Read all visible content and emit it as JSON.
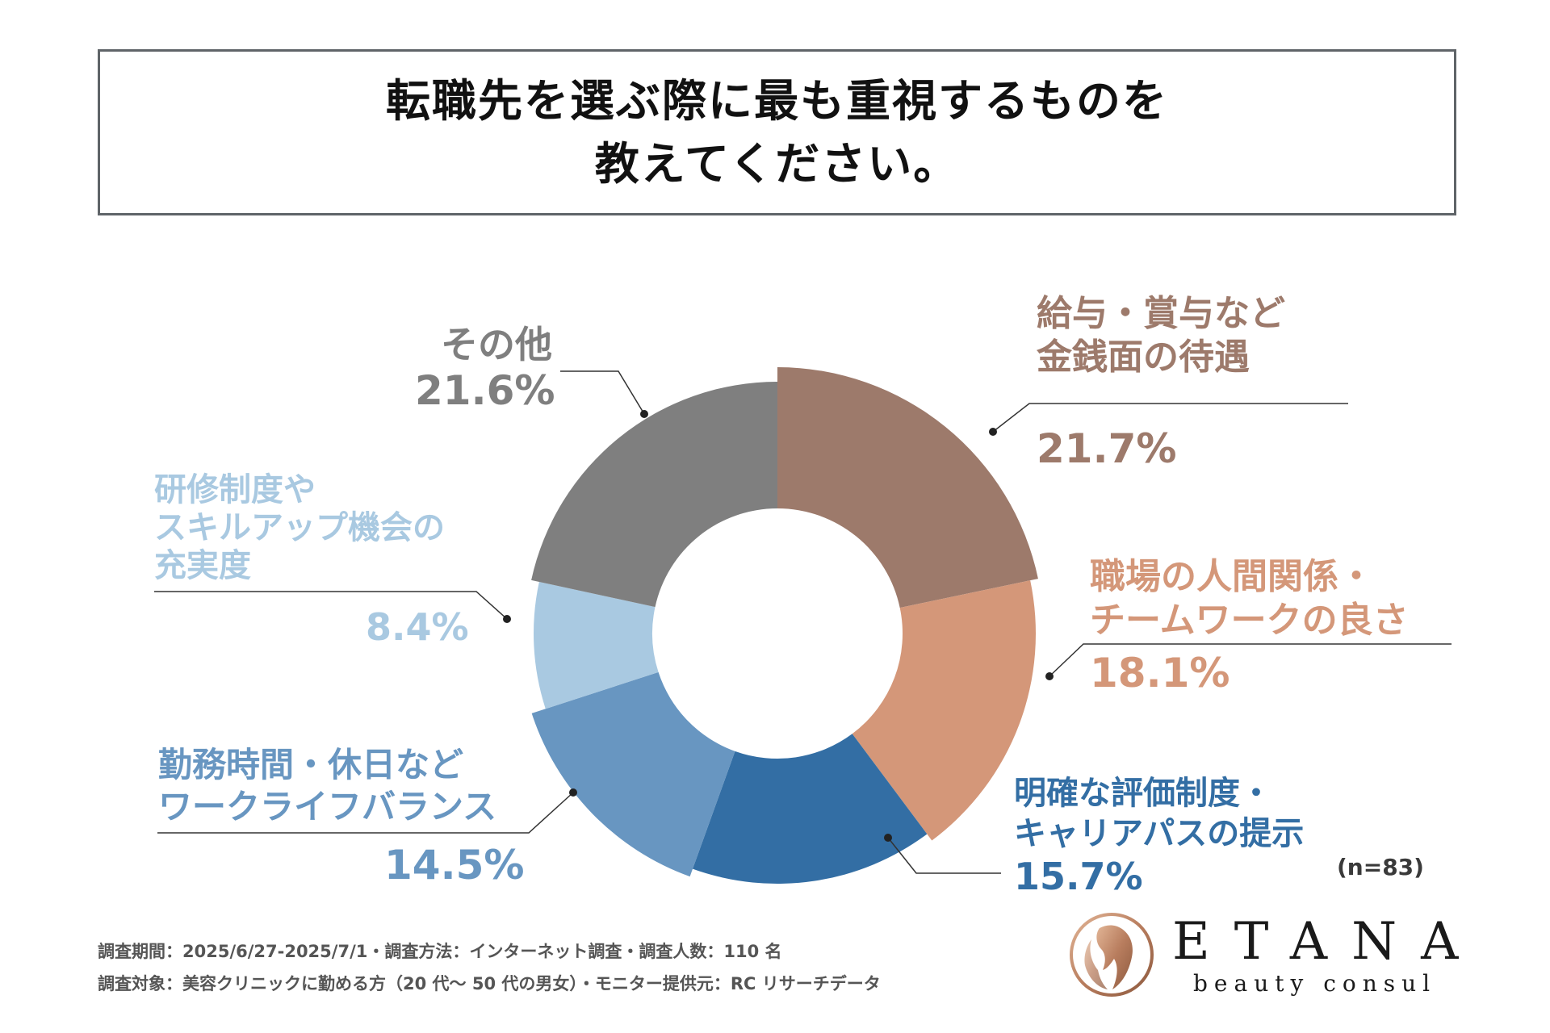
{
  "title": {
    "line1": "転職先を選ぶ際に最も重視するものを",
    "line2": "教えてください。"
  },
  "chart_data": {
    "type": "pie",
    "title": "転職先を選ぶ際に最も重視するものを教えてください。",
    "slices": [
      {
        "name_line1": "給与・賞与など",
        "name_line2": "金銭面の待遇",
        "name_line3": "",
        "value": 21.7,
        "label": "21.7%",
        "color": "#9d7a6b"
      },
      {
        "name_line1": "職場の人間関係・",
        "name_line2": "チームワークの良さ",
        "name_line3": "",
        "value": 18.1,
        "label": "18.1%",
        "color": "#d49779"
      },
      {
        "name_line1": "明確な評価制度・",
        "name_line2": "キャリアパスの提示",
        "name_line3": "",
        "value": 15.7,
        "label": "15.7%",
        "color": "#336ea4"
      },
      {
        "name_line1": "勤務時間・休日など",
        "name_line2": "ワークライフバランス",
        "name_line3": "",
        "value": 14.5,
        "label": "14.5%",
        "color": "#6896c1"
      },
      {
        "name_line1": "研修制度や",
        "name_line2": "スキルアップ機会の",
        "name_line3": "充実度",
        "value": 8.4,
        "label": "8.4%",
        "color": "#a9c9e1"
      },
      {
        "name_line1": "その他",
        "name_line2": "",
        "name_line3": "",
        "value": 21.6,
        "label": "21.6%",
        "color": "#7f7f7f"
      }
    ],
    "note": "(n=83)"
  },
  "label_colors": {
    "salary": "#9d7a6b",
    "relations": "#d49779",
    "evaluation": "#336ea4",
    "worklife": "#6896c1",
    "training": "#a9c9e1",
    "other": "#7f7f7f"
  },
  "footnotes": {
    "line1": "調査期間：2025/6/27-2025/7/1・調査方法：インターネット調査・調査人数：110 名",
    "line2": "調査対象：美容クリニックに勤める方（20 代～ 50 代の男女）・モニター提供元：RC リサーチデータ"
  },
  "logo": {
    "word": "ETANA",
    "sub": "beauty consul"
  }
}
